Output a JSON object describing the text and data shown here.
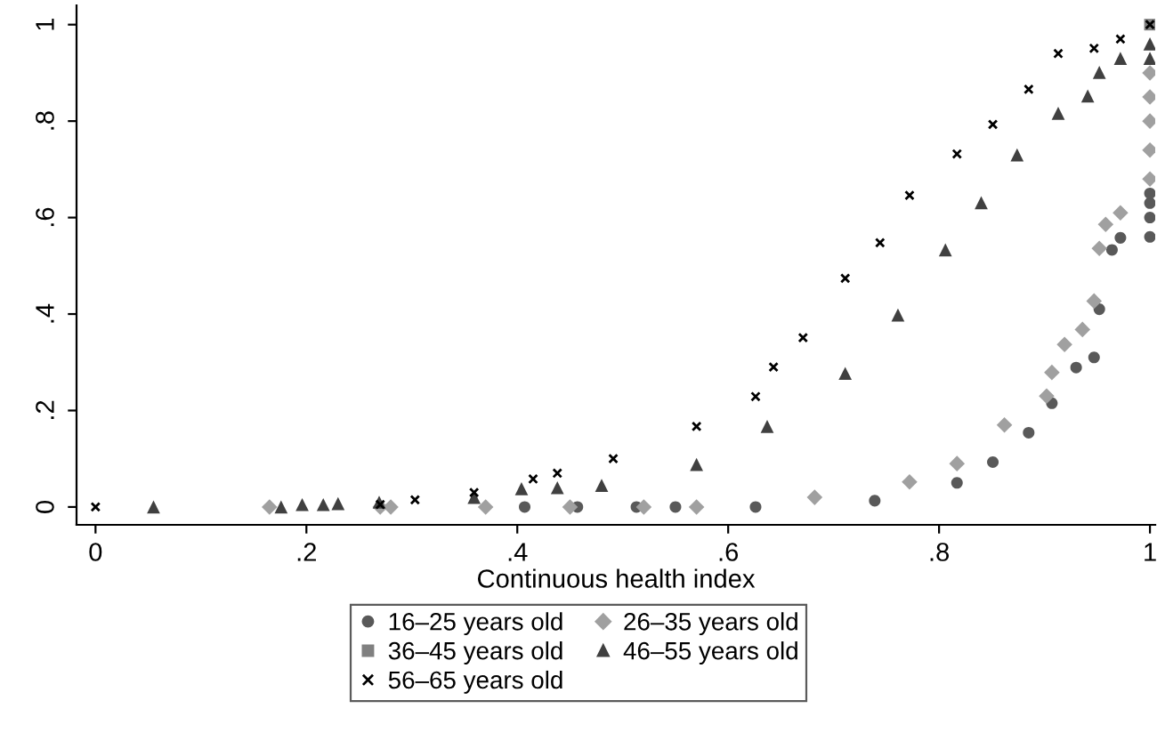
{
  "chart_data": {
    "type": "scatter",
    "xlabel": "Continuous health index",
    "xlim": [
      -0.018,
      1.005
    ],
    "ylim": [
      -0.037,
      1.04
    ],
    "xticks": [
      0,
      {
        "value": 0.2,
        "label": ".2"
      },
      {
        "value": 0.4,
        "label": ".4"
      },
      {
        "value": 0.6,
        "label": ".6"
      },
      {
        "value": 0.8,
        "label": ".8"
      },
      1
    ],
    "yticks": [
      0,
      {
        "value": 0.2,
        "label": ".2"
      },
      {
        "value": 0.4,
        "label": ".4"
      },
      {
        "value": 0.6,
        "label": ".6"
      },
      {
        "value": 0.8,
        "label": ".8"
      },
      1
    ],
    "grid": false,
    "legend": "bottom",
    "series": [
      {
        "name": "16–25 years old",
        "color": "#595959",
        "marker": "circle",
        "x": [
          0.407,
          0.457,
          0.513,
          0.55,
          0.626,
          0.739,
          0.817,
          0.851,
          0.885,
          0.907,
          0.93,
          0.947,
          0.952,
          0.964,
          0.972,
          1,
          1,
          1,
          1
        ],
        "values": [
          0,
          0,
          0,
          0,
          0,
          0.013,
          0.05,
          0.093,
          0.154,
          0.215,
          0.289,
          0.31,
          0.41,
          0.533,
          0.558,
          0.56,
          0.6,
          0.63,
          0.65
        ]
      },
      {
        "name": "26–35 years old",
        "color": "#a0a0a0",
        "marker": "diamond",
        "x": [
          0.165,
          0.27,
          0.28,
          0.37,
          0.45,
          0.52,
          0.57,
          0.682,
          0.772,
          0.817,
          0.862,
          0.902,
          0.907,
          0.919,
          0.936,
          0.947,
          0.952,
          0.958,
          0.972,
          1,
          1,
          1,
          1,
          1
        ],
        "values": [
          0,
          0,
          0,
          0,
          0,
          0,
          0,
          0.02,
          0.052,
          0.09,
          0.17,
          0.23,
          0.279,
          0.337,
          0.368,
          0.427,
          0.536,
          0.586,
          0.61,
          0.68,
          0.74,
          0.8,
          0.85,
          0.9
        ]
      },
      {
        "name": "36–45 years old",
        "color": "#808080",
        "marker": "square",
        "x": [
          1
        ],
        "values": [
          1
        ]
      },
      {
        "name": "46–55 years old",
        "color": "#404040",
        "marker": "triangle",
        "x": [
          0.055,
          0.176,
          0.196,
          0.216,
          0.23,
          0.269,
          0.359,
          0.404,
          0.438,
          0.48,
          0.57,
          0.637,
          0.711,
          0.761,
          0.806,
          0.84,
          0.874,
          0.913,
          0.941,
          0.952,
          0.972,
          1,
          1
        ],
        "values": [
          0,
          0,
          0.005,
          0.005,
          0.007,
          0.01,
          0.02,
          0.038,
          0.04,
          0.045,
          0.088,
          0.167,
          0.277,
          0.398,
          0.533,
          0.631,
          0.73,
          0.816,
          0.852,
          0.901,
          0.93,
          0.93,
          0.96
        ]
      },
      {
        "name": "56–65 years old",
        "color": "#000000",
        "marker": "cross",
        "x": [
          0,
          0.27,
          0.303,
          0.359,
          0.415,
          0.438,
          0.491,
          0.57,
          0.626,
          0.643,
          0.671,
          0.711,
          0.744,
          0.772,
          0.817,
          0.851,
          0.885,
          0.913,
          0.947,
          0.972,
          1
        ],
        "values": [
          0,
          0.005,
          0.015,
          0.03,
          0.058,
          0.07,
          0.1,
          0.167,
          0.229,
          0.29,
          0.351,
          0.474,
          0.548,
          0.646,
          0.732,
          0.793,
          0.866,
          0.94,
          0.951,
          0.97,
          1
        ]
      }
    ]
  }
}
